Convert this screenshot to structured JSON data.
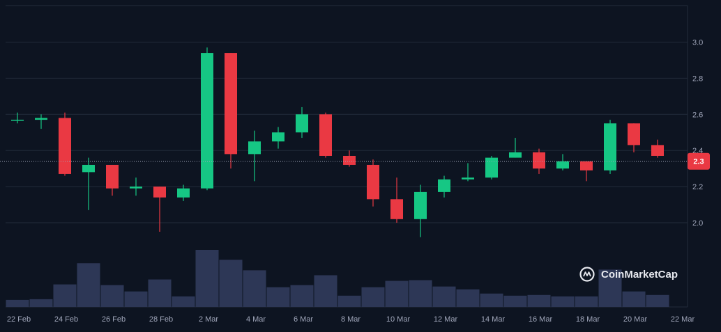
{
  "colors": {
    "background": "#0d1421",
    "up": "#16c784",
    "down": "#ea3943",
    "volume": "#2d3756",
    "volume_highlight": "#323e63",
    "grid": "#222b3a",
    "axis_text": "#a1a7bb"
  },
  "brand": {
    "name": "CoinMarketCap",
    "icon": "coinmarketcap-logo-icon"
  },
  "current_price": {
    "label": "2.3",
    "value": 2.34
  },
  "chart_data": {
    "type": "candlestick",
    "x_ticks": [
      "22 Feb",
      "24 Feb",
      "26 Feb",
      "28 Feb",
      "2 Mar",
      "4 Mar",
      "6 Mar",
      "8 Mar",
      "10 Mar",
      "12 Mar",
      "14 Mar",
      "16 Mar",
      "18 Mar",
      "20 Mar",
      "22 Mar"
    ],
    "y_ticks": [
      "2.0",
      "2.2",
      "2.4",
      "2.6",
      "2.8",
      "3.0"
    ],
    "ylim": [
      1.86,
      3.05
    ],
    "grid": true,
    "candles": [
      {
        "date": "22 Feb",
        "open": 2.57,
        "high": 2.61,
        "low": 2.55,
        "close": 2.57,
        "volume": 10
      },
      {
        "date": "23 Feb",
        "open": 2.57,
        "high": 2.6,
        "low": 2.52,
        "close": 2.58,
        "volume": 11
      },
      {
        "date": "24 Feb",
        "open": 2.58,
        "high": 2.61,
        "low": 2.26,
        "close": 2.27,
        "volume": 32
      },
      {
        "date": "25 Feb",
        "open": 2.28,
        "high": 2.36,
        "low": 2.07,
        "close": 2.32,
        "volume": 62
      },
      {
        "date": "26 Feb",
        "open": 2.32,
        "high": 2.32,
        "low": 2.15,
        "close": 2.19,
        "volume": 31
      },
      {
        "date": "27 Feb",
        "open": 2.19,
        "high": 2.25,
        "low": 2.15,
        "close": 2.2,
        "volume": 22
      },
      {
        "date": "28 Feb",
        "open": 2.2,
        "high": 2.2,
        "low": 1.95,
        "close": 2.14,
        "volume": 39
      },
      {
        "date": "1 Mar",
        "open": 2.14,
        "high": 2.21,
        "low": 2.12,
        "close": 2.19,
        "volume": 15
      },
      {
        "date": "2 Mar",
        "open": 2.19,
        "high": 2.97,
        "low": 2.18,
        "close": 2.94,
        "volume": 81
      },
      {
        "date": "3 Mar",
        "open": 2.94,
        "high": 2.94,
        "low": 2.3,
        "close": 2.38,
        "volume": 67
      },
      {
        "date": "4 Mar",
        "open": 2.38,
        "high": 2.51,
        "low": 2.23,
        "close": 2.45,
        "volume": 52
      },
      {
        "date": "5 Mar",
        "open": 2.45,
        "high": 2.53,
        "low": 2.41,
        "close": 2.5,
        "volume": 28
      },
      {
        "date": "6 Mar",
        "open": 2.5,
        "high": 2.64,
        "low": 2.47,
        "close": 2.6,
        "volume": 31
      },
      {
        "date": "7 Mar",
        "open": 2.6,
        "high": 2.61,
        "low": 2.36,
        "close": 2.37,
        "volume": 45
      },
      {
        "date": "8 Mar",
        "open": 2.37,
        "high": 2.4,
        "low": 2.31,
        "close": 2.32,
        "volume": 16
      },
      {
        "date": "9 Mar",
        "open": 2.32,
        "high": 2.35,
        "low": 2.09,
        "close": 2.13,
        "volume": 28
      },
      {
        "date": "10 Mar",
        "open": 2.13,
        "high": 2.25,
        "low": 2.0,
        "close": 2.02,
        "volume": 37
      },
      {
        "date": "11 Mar",
        "open": 2.02,
        "high": 2.21,
        "low": 1.92,
        "close": 2.17,
        "volume": 38
      },
      {
        "date": "12 Mar",
        "open": 2.17,
        "high": 2.26,
        "low": 2.14,
        "close": 2.24,
        "volume": 29
      },
      {
        "date": "13 Mar",
        "open": 2.24,
        "high": 2.33,
        "low": 2.23,
        "close": 2.25,
        "volume": 25
      },
      {
        "date": "14 Mar",
        "open": 2.25,
        "high": 2.37,
        "low": 2.24,
        "close": 2.36,
        "volume": 19
      },
      {
        "date": "15 Mar",
        "open": 2.36,
        "high": 2.47,
        "low": 2.36,
        "close": 2.39,
        "volume": 16
      },
      {
        "date": "16 Mar",
        "open": 2.39,
        "high": 2.41,
        "low": 2.27,
        "close": 2.3,
        "volume": 17
      },
      {
        "date": "17 Mar",
        "open": 2.3,
        "high": 2.38,
        "low": 2.29,
        "close": 2.34,
        "volume": 15
      },
      {
        "date": "18 Mar",
        "open": 2.34,
        "high": 2.34,
        "low": 2.23,
        "close": 2.29,
        "volume": 15
      },
      {
        "date": "19 Mar",
        "open": 2.29,
        "high": 2.57,
        "low": 2.27,
        "close": 2.55,
        "volume": 53
      },
      {
        "date": "20 Mar",
        "open": 2.55,
        "high": 2.55,
        "low": 2.39,
        "close": 2.43,
        "volume": 22
      },
      {
        "date": "21 Mar",
        "open": 2.43,
        "high": 2.46,
        "low": 2.36,
        "close": 2.37,
        "volume": 17
      }
    ]
  }
}
